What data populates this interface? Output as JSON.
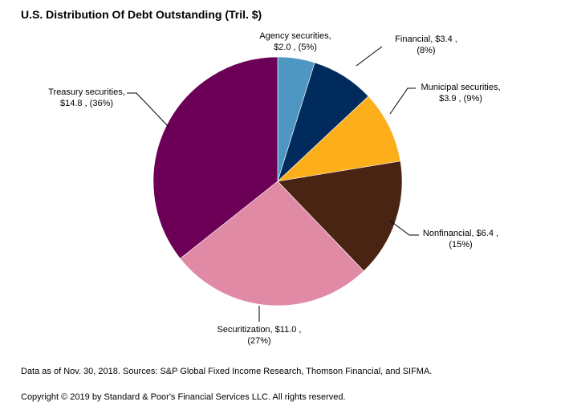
{
  "chart_data": {
    "type": "pie",
    "title": "U.S. Distribution Of Debt Outstanding (Tril. $)",
    "slices": [
      {
        "name": "Agency securities",
        "value": 2.0,
        "value_label": "$2.0",
        "percent_label": "(5%)",
        "color": "#4e97c3"
      },
      {
        "name": "Financial",
        "value": 3.4,
        "value_label": "$3.4",
        "percent_label": "(8%)",
        "color": "#002b5c"
      },
      {
        "name": "Municipal securities",
        "value": 3.9,
        "value_label": "$3.9",
        "percent_label": "(9%)",
        "color": "#fcae1b"
      },
      {
        "name": "Nonfinancial",
        "value": 6.4,
        "value_label": "$6.4",
        "percent_label": "(15%)",
        "color": "#4a2413"
      },
      {
        "name": "Securitization",
        "value": 11.0,
        "value_label": "$11.0",
        "percent_label": "(27%)",
        "color": "#e08aa6"
      },
      {
        "name": "Treasury securities",
        "value": 14.8,
        "value_label": "$14.8",
        "percent_label": "(36%)",
        "color": "#6c0056"
      }
    ]
  },
  "footnote": "Data as of Nov. 30, 2018. Sources: S&P Global Fixed Income Research, Thomson Financial, and SIFMA.",
  "copyright": "Copyright © 2019 by Standard & Poor's Financial Services LLC. All rights reserved."
}
